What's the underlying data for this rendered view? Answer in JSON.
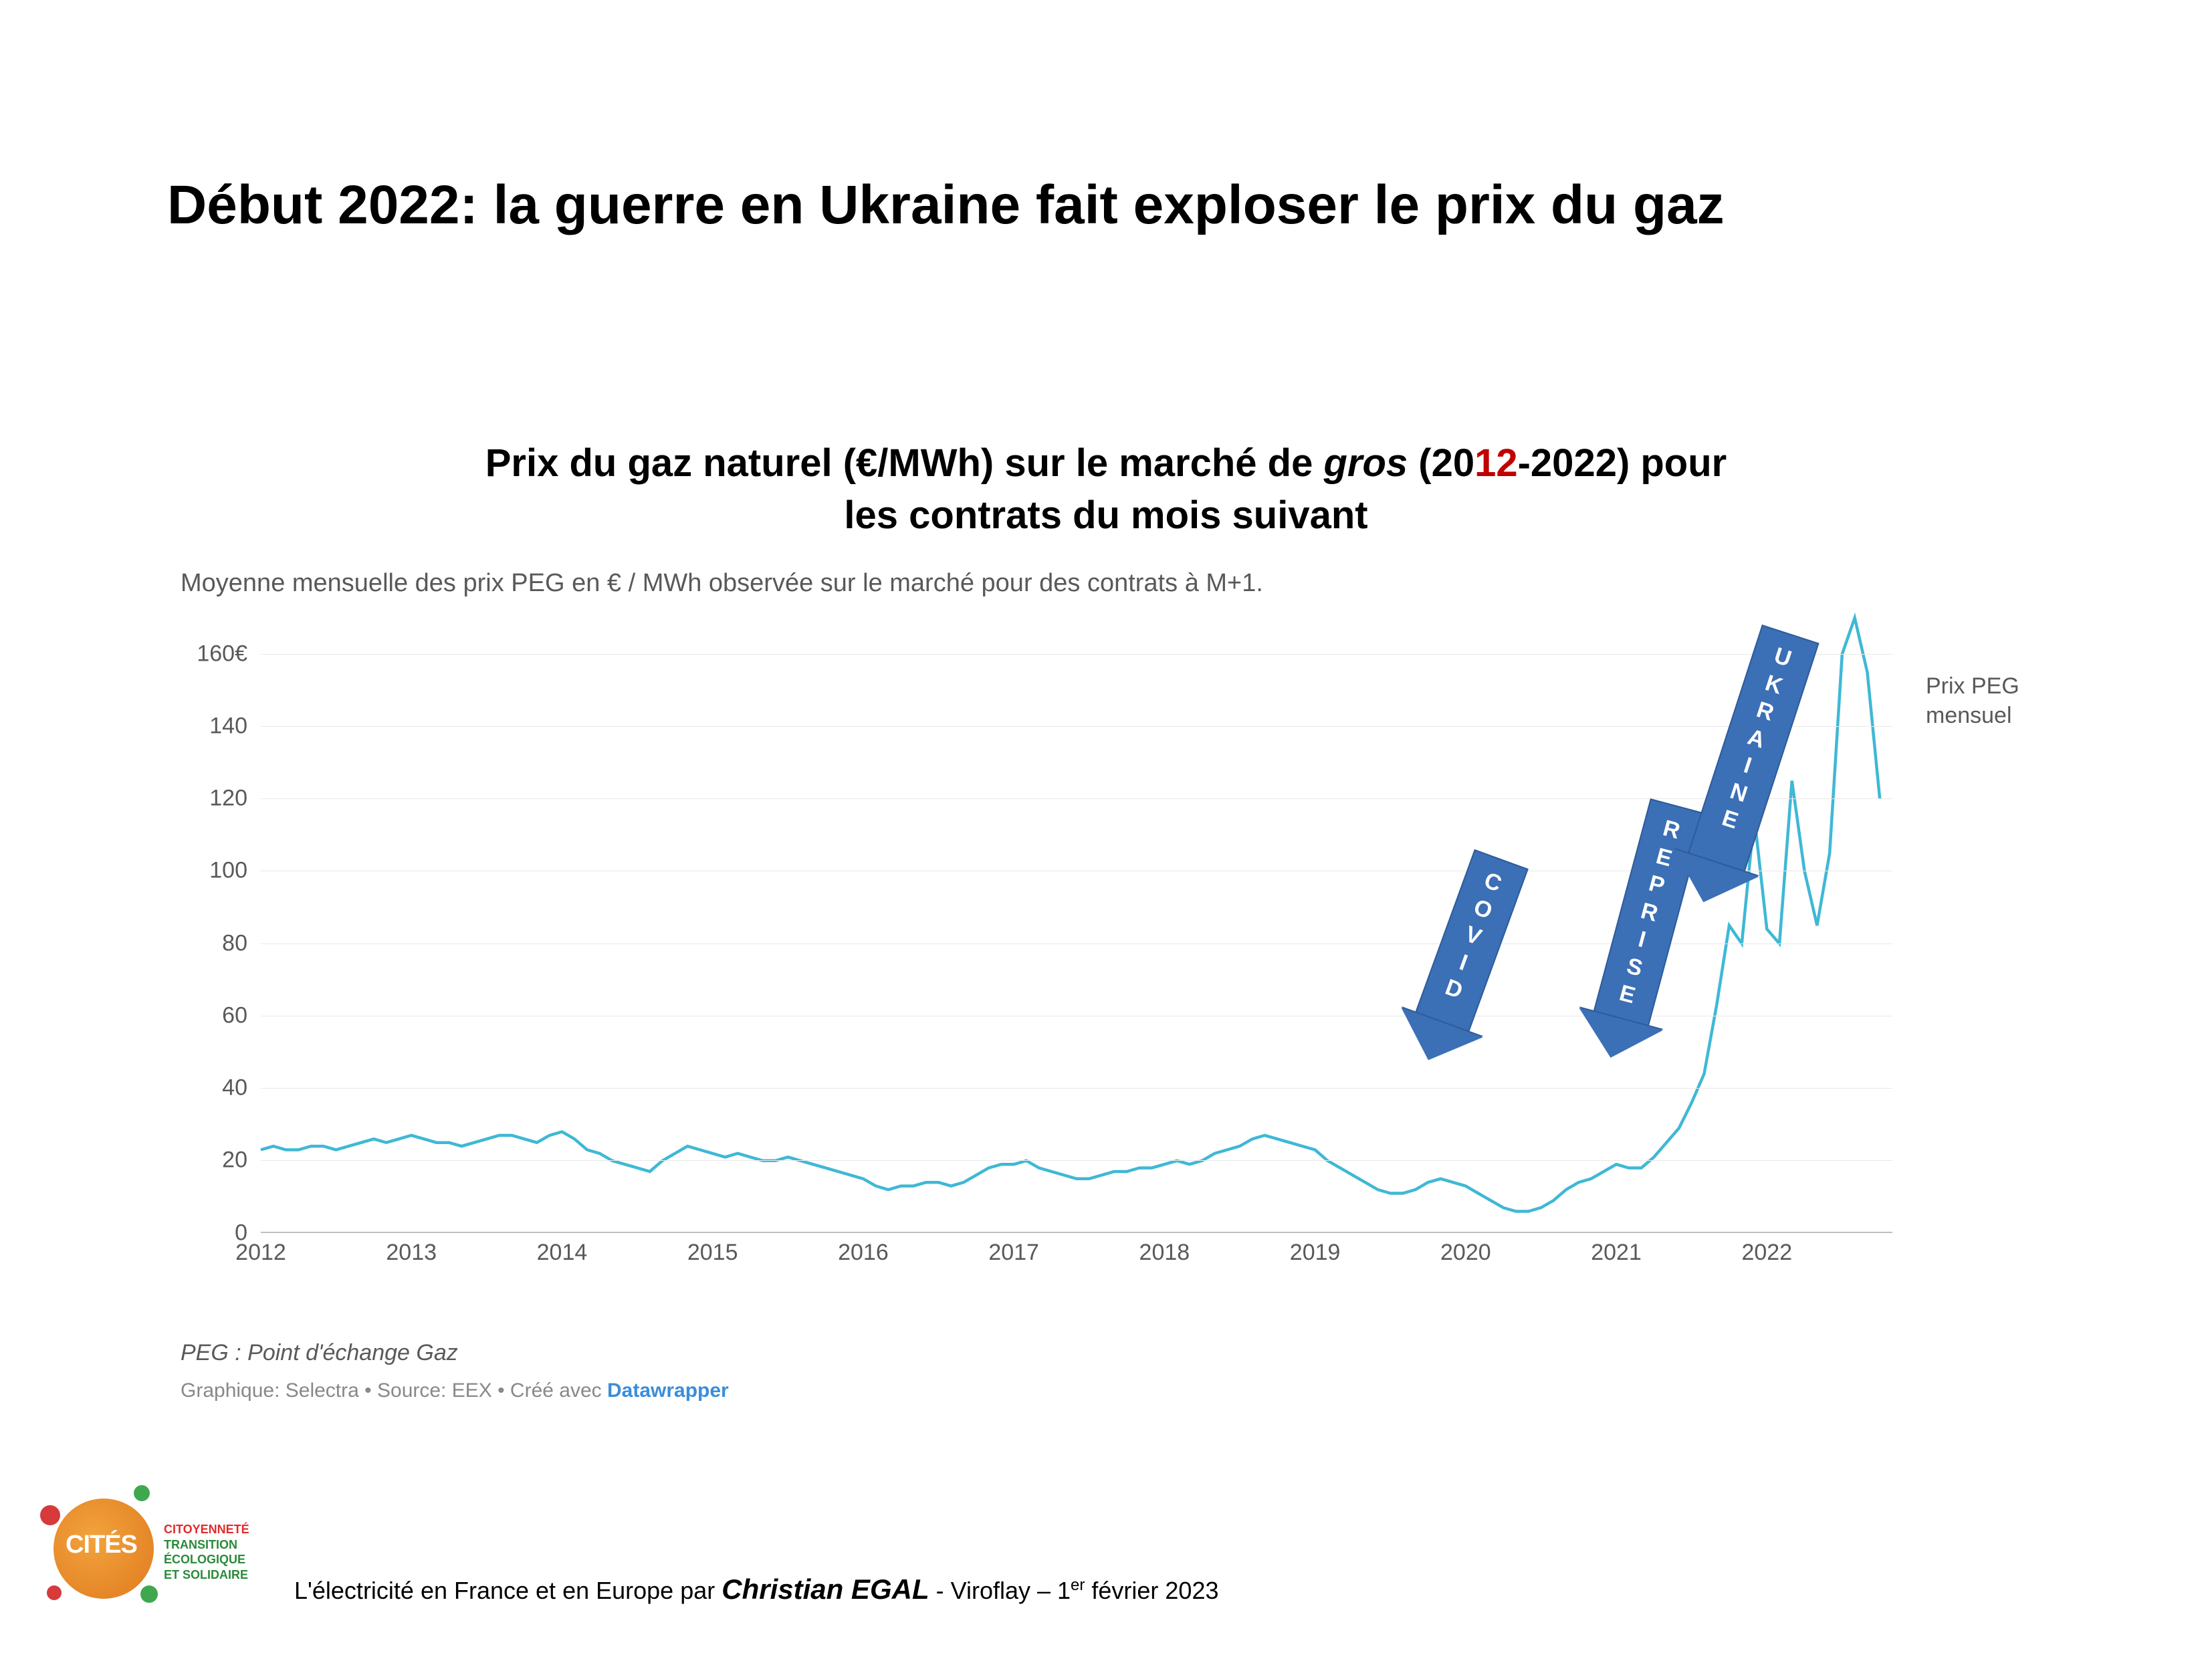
{
  "slide_title": "Début 2022: la guerre en Ukraine fait exploser le prix du gaz",
  "chart": {
    "type": "line",
    "title_pre": "Prix du gaz naturel (€/MWh) sur le marché de ",
    "title_gros": "gros",
    "title_paren_open": " (20",
    "title_red": "12",
    "title_paren_rest": "-2022) pour",
    "title_line2": "les contrats du mois suivant",
    "subtitle": "Moyenne mensuelle des prix PEG en € / MWh observée sur le marché pour des contrats à M+1.",
    "ylabel_suffix": "€",
    "ylim": [
      0,
      170
    ],
    "ytick_step": 20,
    "y_ticks": [
      0,
      20,
      40,
      60,
      80,
      100,
      120,
      140,
      160
    ],
    "x_years": [
      "2012",
      "2013",
      "2014",
      "2015",
      "2016",
      "2017",
      "2018",
      "2019",
      "2020",
      "2021",
      "2022"
    ],
    "x_range_months": 130,
    "line_color": "#3fb8d6",
    "background_color": "#ffffff",
    "grid_color": "#e8e8e8",
    "axis_color": "#bfbfbf",
    "text_color": "#595959",
    "legend_label": "Prix PEG mensuel",
    "series": [
      [
        0,
        23
      ],
      [
        1,
        24
      ],
      [
        2,
        23
      ],
      [
        3,
        23
      ],
      [
        4,
        24
      ],
      [
        5,
        24
      ],
      [
        6,
        23
      ],
      [
        7,
        24
      ],
      [
        8,
        25
      ],
      [
        9,
        26
      ],
      [
        10,
        25
      ],
      [
        11,
        26
      ],
      [
        12,
        27
      ],
      [
        13,
        26
      ],
      [
        14,
        25
      ],
      [
        15,
        25
      ],
      [
        16,
        24
      ],
      [
        17,
        25
      ],
      [
        18,
        26
      ],
      [
        19,
        27
      ],
      [
        20,
        27
      ],
      [
        21,
        26
      ],
      [
        22,
        25
      ],
      [
        23,
        27
      ],
      [
        24,
        28
      ],
      [
        25,
        26
      ],
      [
        26,
        23
      ],
      [
        27,
        22
      ],
      [
        28,
        20
      ],
      [
        29,
        19
      ],
      [
        30,
        18
      ],
      [
        31,
        17
      ],
      [
        32,
        20
      ],
      [
        33,
        22
      ],
      [
        34,
        24
      ],
      [
        35,
        23
      ],
      [
        36,
        22
      ],
      [
        37,
        21
      ],
      [
        38,
        22
      ],
      [
        39,
        21
      ],
      [
        40,
        20
      ],
      [
        41,
        20
      ],
      [
        42,
        21
      ],
      [
        43,
        20
      ],
      [
        44,
        19
      ],
      [
        45,
        18
      ],
      [
        46,
        17
      ],
      [
        47,
        16
      ],
      [
        48,
        15
      ],
      [
        49,
        13
      ],
      [
        50,
        12
      ],
      [
        51,
        13
      ],
      [
        52,
        13
      ],
      [
        53,
        14
      ],
      [
        54,
        14
      ],
      [
        55,
        13
      ],
      [
        56,
        14
      ],
      [
        57,
        16
      ],
      [
        58,
        18
      ],
      [
        59,
        19
      ],
      [
        60,
        19
      ],
      [
        61,
        20
      ],
      [
        62,
        18
      ],
      [
        63,
        17
      ],
      [
        64,
        16
      ],
      [
        65,
        15
      ],
      [
        66,
        15
      ],
      [
        67,
        16
      ],
      [
        68,
        17
      ],
      [
        69,
        17
      ],
      [
        70,
        18
      ],
      [
        71,
        18
      ],
      [
        72,
        19
      ],
      [
        73,
        20
      ],
      [
        74,
        19
      ],
      [
        75,
        20
      ],
      [
        76,
        22
      ],
      [
        77,
        23
      ],
      [
        78,
        24
      ],
      [
        79,
        26
      ],
      [
        80,
        27
      ],
      [
        81,
        26
      ],
      [
        82,
        25
      ],
      [
        83,
        24
      ],
      [
        84,
        23
      ],
      [
        85,
        20
      ],
      [
        86,
        18
      ],
      [
        87,
        16
      ],
      [
        88,
        14
      ],
      [
        89,
        12
      ],
      [
        90,
        11
      ],
      [
        91,
        11
      ],
      [
        92,
        12
      ],
      [
        93,
        14
      ],
      [
        94,
        15
      ],
      [
        95,
        14
      ],
      [
        96,
        13
      ],
      [
        97,
        11
      ],
      [
        98,
        9
      ],
      [
        99,
        7
      ],
      [
        100,
        6
      ],
      [
        101,
        6
      ],
      [
        102,
        7
      ],
      [
        103,
        9
      ],
      [
        104,
        12
      ],
      [
        105,
        14
      ],
      [
        106,
        15
      ],
      [
        107,
        17
      ],
      [
        108,
        19
      ],
      [
        109,
        18
      ],
      [
        110,
        18
      ],
      [
        111,
        21
      ],
      [
        112,
        25
      ],
      [
        113,
        29
      ],
      [
        114,
        36
      ],
      [
        115,
        44
      ],
      [
        116,
        63
      ],
      [
        117,
        85
      ],
      [
        118,
        80
      ],
      [
        119,
        115
      ],
      [
        120,
        84
      ],
      [
        121,
        80
      ],
      [
        122,
        125
      ],
      [
        123,
        100
      ],
      [
        124,
        85
      ],
      [
        125,
        105
      ],
      [
        126,
        160
      ],
      [
        127,
        170
      ],
      [
        128,
        155
      ],
      [
        129,
        120
      ]
    ],
    "arrows": [
      {
        "label": "COVID",
        "x_month": 99,
        "y_value": 106,
        "rotate_deg": 20,
        "body_w": 86,
        "body_h": 260,
        "head_w": 130,
        "head_h": 60,
        "fill": "#3b6fb6",
        "border": "#2f5c9a"
      },
      {
        "label": "REPRISE",
        "x_month": 113,
        "y_value": 120,
        "rotate_deg": 15,
        "body_w": 86,
        "body_h": 320,
        "head_w": 130,
        "head_h": 60,
        "fill": "#3b6fb6",
        "border": "#2f5c9a"
      },
      {
        "label": "UKRAINE",
        "x_month": 122,
        "y_value": 168,
        "rotate_deg": 18,
        "body_w": 90,
        "body_h": 360,
        "head_w": 134,
        "head_h": 62,
        "fill": "#3b6fb6",
        "border": "#2f5c9a"
      }
    ]
  },
  "notes": {
    "note1": "PEG : Point d'échange Gaz",
    "note2_pre": "Graphique: Selectra • Source: EEX • Créé avec ",
    "note2_dw": "Datawrapper"
  },
  "footer": {
    "logo_main": "CITÉS",
    "logo_side1": "CITOYENNETÉ",
    "logo_side2": "TRANSITION ÉCOLOGIQUE",
    "logo_side3": "ET SOLIDAIRE",
    "text_pre": "L'électricité en France et en Europe par ",
    "author": "Christian EGAL",
    "text_post_1": " - Viroflay – 1",
    "text_sup": "er",
    "text_post_2": " février 2023"
  }
}
